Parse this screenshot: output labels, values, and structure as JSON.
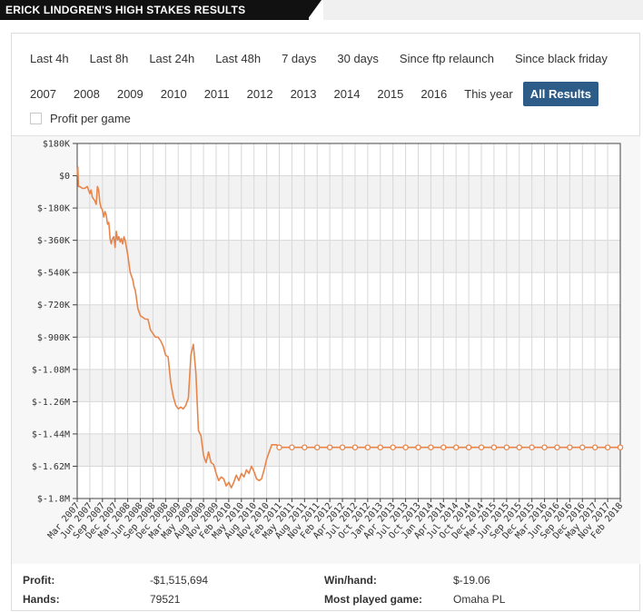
{
  "header": {
    "title": "ERICK LINDGREN'S HIGH STAKES RESULTS"
  },
  "filters": {
    "row1": [
      "Last 4h",
      "Last 8h",
      "Last 24h",
      "Last 48h",
      "7 days",
      "30 days",
      "Since ftp relaunch",
      "Since black friday"
    ],
    "row2": [
      "2007",
      "2008",
      "2009",
      "2010",
      "2011",
      "2012",
      "2013",
      "2014",
      "2015",
      "2016",
      "This year",
      "All Results"
    ],
    "active": "All Results"
  },
  "options": {
    "profit_per_game_label": "Profit per game"
  },
  "chart_data": {
    "type": "line",
    "line_color": "#e8854a",
    "grid": true,
    "yticks": [
      "$180K",
      "$0",
      "$-180K",
      "$-360K",
      "$-540K",
      "$-720K",
      "$-900K",
      "$-1.08M",
      "$-1.26M",
      "$-1.44M",
      "$-1.62M",
      "$-1.8M"
    ],
    "ylim": [
      -1800000,
      180000
    ],
    "xticks": [
      "Mar 2007",
      "Jun 2007",
      "Sep 2007",
      "Dec 2007",
      "Mar 2008",
      "Jun 2008",
      "Sep 2008",
      "Dec 2008",
      "Mar 2009",
      "May 2009",
      "Aug 2009",
      "Nov 2009",
      "Feb 2010",
      "May 2010",
      "Aug 2010",
      "Nov 2010",
      "Feb 2011",
      "May 2011",
      "Aug 2011",
      "Nov 2011",
      "Feb 2012",
      "Apr 2012",
      "Jul 2012",
      "Oct 2012",
      "Jan 2013",
      "Apr 2013",
      "Jul 2013",
      "Oct 2013",
      "Jan 2014",
      "Apr 2014",
      "Jul 2014",
      "Oct 2014",
      "Dec 2014",
      "Mar 2015",
      "Jun 2015",
      "Sep 2015",
      "Dec 2015",
      "Mar 2016",
      "Jun 2016",
      "Sep 2016",
      "Dec 2016",
      "May 2017",
      "Nov 2017",
      "Feb 2018"
    ],
    "series": [
      {
        "x": [
          0,
          0.05,
          0.1,
          0.2,
          0.4,
          0.6,
          0.8,
          1.0,
          1.1,
          1.2,
          1.4,
          1.5,
          1.6,
          1.7,
          1.8,
          1.9,
          2.0,
          2.1,
          2.2,
          2.3,
          2.4,
          2.5,
          2.6,
          2.7,
          2.8,
          2.9,
          3.0,
          3.1,
          3.2,
          3.3,
          3.4,
          3.5,
          3.6,
          3.7,
          3.8,
          3.9,
          4.0,
          4.1,
          4.2,
          4.3,
          4.4,
          4.5,
          4.6,
          4.8,
          5.0,
          5.2,
          5.4,
          5.6,
          5.8,
          6.0,
          6.2,
          6.4,
          6.6,
          6.8,
          7.0,
          7.2,
          7.4,
          7.6,
          7.8,
          8.0,
          8.2,
          8.4,
          8.6,
          8.8,
          9.0,
          9.2,
          9.4,
          9.6,
          9.8,
          10.0,
          10.2,
          10.4,
          10.6,
          10.8,
          11.0,
          11.2,
          11.4,
          11.6,
          11.8,
          12.0,
          12.2,
          12.4,
          12.6,
          12.8,
          13.0,
          13.2,
          13.4,
          13.6,
          13.8,
          14.0,
          14.2,
          14.4,
          14.6,
          14.8,
          15.0,
          15.2,
          15.4,
          15.6,
          15.8,
          16.0,
          16.2,
          16.4,
          16.6,
          16.8,
          17.0,
          17.5,
          18.0,
          19.0,
          20.0,
          21.0,
          22.0,
          23.0,
          24.0,
          25.0,
          26.0,
          27.0,
          28.0,
          29.0,
          30.0,
          31.0,
          32.0,
          33.0,
          34.0,
          35.0,
          36.0,
          37.0,
          38.0,
          39.0,
          40.0,
          41.0,
          42.0,
          43.0
        ],
        "y": [
          0,
          50000,
          -60000,
          -60000,
          -70000,
          -70000,
          -60000,
          -100000,
          -80000,
          -120000,
          -140000,
          -160000,
          -60000,
          -80000,
          -150000,
          -180000,
          -190000,
          -230000,
          -200000,
          -220000,
          -270000,
          -260000,
          -350000,
          -380000,
          -350000,
          -340000,
          -400000,
          -310000,
          -360000,
          -340000,
          -370000,
          -350000,
          -380000,
          -340000,
          -360000,
          -400000,
          -440000,
          -490000,
          -540000,
          -560000,
          -580000,
          -620000,
          -640000,
          -740000,
          -780000,
          -790000,
          -800000,
          -800000,
          -860000,
          -880000,
          -900000,
          -900000,
          -920000,
          -950000,
          -1000000,
          -1010000,
          -1150000,
          -1230000,
          -1280000,
          -1300000,
          -1290000,
          -1300000,
          -1280000,
          -1240000,
          -1000000,
          -940000,
          -1100000,
          -1420000,
          -1450000,
          -1560000,
          -1600000,
          -1540000,
          -1600000,
          -1610000,
          -1660000,
          -1700000,
          -1680000,
          -1690000,
          -1730000,
          -1710000,
          -1740000,
          -1710000,
          -1670000,
          -1700000,
          -1660000,
          -1680000,
          -1640000,
          -1660000,
          -1620000,
          -1650000,
          -1690000,
          -1700000,
          -1690000,
          -1640000,
          -1580000,
          -1540000,
          -1500000,
          -1500000,
          -1500000,
          -1520000,
          -1515000,
          -1515000,
          -1515000,
          -1515000,
          -1515000,
          -1515000,
          -1515000,
          -1515000,
          -1515000,
          -1515000,
          -1515000,
          -1515000,
          -1515000,
          -1515000,
          -1515000,
          -1515000,
          -1515000,
          -1515000,
          -1515000,
          -1515000,
          -1515000,
          -1515000,
          -1515000,
          -1515000,
          -1515000,
          -1515000,
          -1515000,
          -1515000,
          -1515000,
          -1515000,
          -1515000,
          -1515000
        ]
      }
    ],
    "marker_x": [
      16,
      17,
      18,
      19,
      20,
      21,
      22,
      23,
      24,
      25,
      26,
      27,
      28,
      29,
      30,
      31,
      32,
      33,
      34,
      35,
      36,
      37,
      38,
      39,
      40,
      41,
      42,
      43
    ]
  },
  "stats": {
    "profit_label": "Profit:",
    "profit_value": "-$1,515,694",
    "winhand_label": "Win/hand:",
    "winhand_value": "$-19.06",
    "hands_label": "Hands:",
    "hands_value": "79521",
    "most_played_label": "Most played game:",
    "most_played_value": "Omaha PL"
  }
}
